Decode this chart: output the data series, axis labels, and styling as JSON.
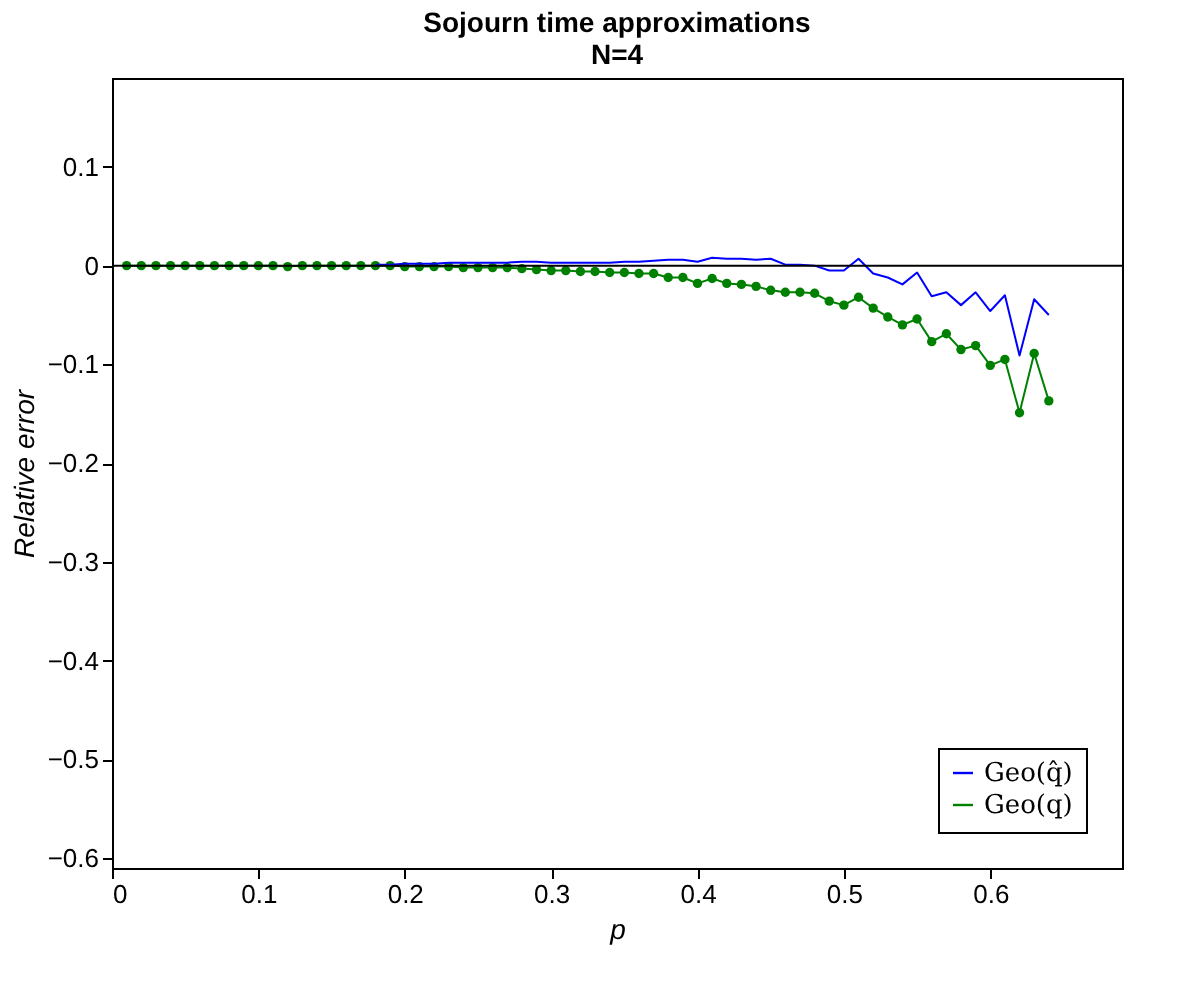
{
  "chart_data": {
    "type": "line",
    "title": [
      "Sojourn time approximations",
      "N=4"
    ],
    "xlabel": "p",
    "ylabel": "Relative error",
    "x": [
      0.01,
      0.02,
      0.03,
      0.04,
      0.05,
      0.06,
      0.07,
      0.08,
      0.09,
      0.1,
      0.11,
      0.12,
      0.13,
      0.14,
      0.15,
      0.16,
      0.17,
      0.18,
      0.19,
      0.2,
      0.21,
      0.22,
      0.23,
      0.24,
      0.25,
      0.26,
      0.27,
      0.28,
      0.29,
      0.3,
      0.31,
      0.32,
      0.33,
      0.34,
      0.35,
      0.36,
      0.37,
      0.38,
      0.39,
      0.4,
      0.41,
      0.42,
      0.43,
      0.44,
      0.45,
      0.46,
      0.47,
      0.48,
      0.49,
      0.5,
      0.51,
      0.52,
      0.53,
      0.54,
      0.55,
      0.56,
      0.57,
      0.58,
      0.59,
      0.6,
      0.61,
      0.62,
      0.63,
      0.64
    ],
    "series": [
      {
        "name": "Geo(q̂)",
        "color": "#0000ff",
        "marker": "none",
        "values": [
          null,
          null,
          null,
          null,
          null,
          null,
          null,
          null,
          null,
          null,
          null,
          null,
          null,
          null,
          null,
          null,
          null,
          0.001,
          0.001,
          0.002,
          0.002,
          0.002,
          0.003,
          0.003,
          0.003,
          0.003,
          0.003,
          0.004,
          0.004,
          0.003,
          0.003,
          0.003,
          0.003,
          0.003,
          0.004,
          0.004,
          0.005,
          0.006,
          0.006,
          0.004,
          0.008,
          0.007,
          0.007,
          0.006,
          0.007,
          0.001,
          0.001,
          0,
          -0.005,
          -0.005,
          0.007,
          -0.008,
          -0.012,
          -0.019,
          -0.007,
          -0.031,
          -0.027,
          -0.04,
          -0.027,
          -0.046,
          -0.03,
          -0.091,
          -0.034,
          -0.05
        ]
      },
      {
        "name": "Geo(q)",
        "color": "#008000",
        "marker": "circle",
        "values": [
          0,
          0,
          0,
          0,
          0,
          0,
          0,
          0,
          0,
          0,
          0,
          -0.001,
          0,
          0,
          0,
          0,
          0,
          0,
          0,
          -0.001,
          -0.001,
          -0.001,
          -0.001,
          -0.002,
          -0.002,
          -0.002,
          -0.002,
          -0.003,
          -0.004,
          -0.005,
          -0.005,
          -0.006,
          -0.006,
          -0.007,
          -0.007,
          -0.008,
          -0.008,
          -0.012,
          -0.012,
          -0.018,
          -0.013,
          -0.018,
          -0.019,
          -0.021,
          -0.025,
          -0.027,
          -0.027,
          -0.028,
          -0.036,
          -0.04,
          -0.032,
          -0.043,
          -0.052,
          -0.06,
          -0.054,
          -0.077,
          -0.069,
          -0.085,
          -0.081,
          -0.101,
          -0.095,
          -0.149,
          -0.089,
          -0.137
        ]
      }
    ],
    "xlim": [
      0,
      0.69
    ],
    "xticks": [
      0,
      0.1,
      0.2,
      0.3,
      0.4,
      0.5,
      0.6
    ],
    "ylim": [
      -0.61,
      0.19
    ],
    "yticks": [
      0.1,
      {
        "value": 0,
        "label": "0"
      },
      {
        "value": -0.1,
        "label": "−0.1"
      },
      {
        "value": -0.2,
        "label": "−0.2"
      },
      {
        "value": -0.3,
        "label": "−0.3"
      },
      {
        "value": -0.4,
        "label": "−0.4"
      },
      {
        "value": -0.5,
        "label": "−0.5"
      },
      {
        "value": -0.6,
        "label": "−0.6"
      }
    ],
    "ref_lines": [
      {
        "axis": "y",
        "value": 0,
        "color": "#000000"
      }
    ],
    "grid": false,
    "legend": "bottom right",
    "line_style": "solid"
  }
}
